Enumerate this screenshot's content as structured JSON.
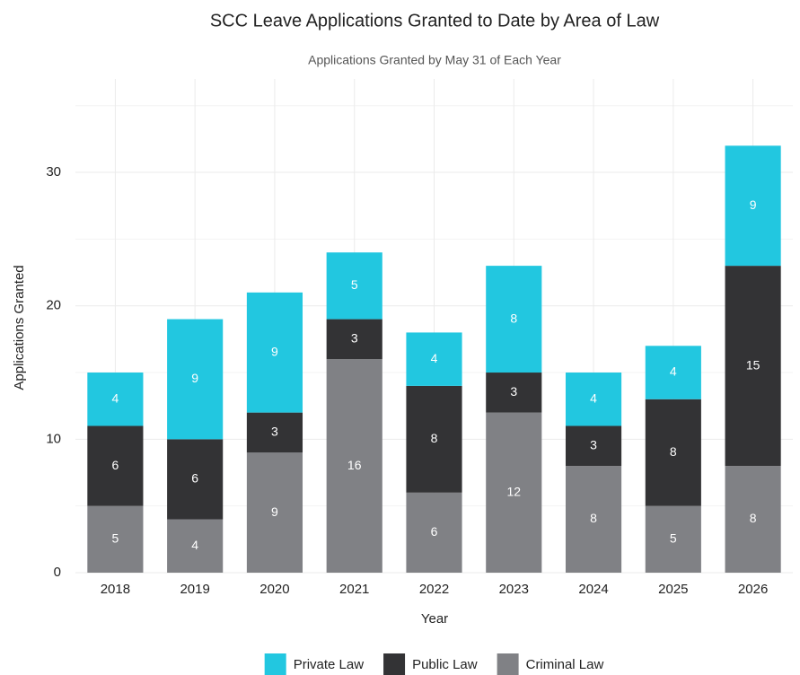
{
  "chart_data": {
    "type": "stacked_bar",
    "title": "SCC Leave Applications Granted to Date by Area of Law",
    "subtitle": "Applications Granted by May 31 of Each Year",
    "x_label": "Year",
    "y_label": "Applications Granted",
    "categories": [
      "2018",
      "2019",
      "2020",
      "2021",
      "2022",
      "2023",
      "2024",
      "2025",
      "2026"
    ],
    "series": [
      {
        "name": "Private Law",
        "color": "#22c7e0",
        "values": [
          4,
          9,
          9,
          5,
          4,
          8,
          4,
          4,
          9
        ]
      },
      {
        "name": "Public Law",
        "color": "#333335",
        "values": [
          6,
          6,
          3,
          3,
          8,
          3,
          3,
          8,
          15
        ]
      },
      {
        "name": "Criminal Law",
        "color": "#808185",
        "values": [
          5,
          4,
          9,
          16,
          6,
          12,
          8,
          5,
          8
        ]
      }
    ],
    "ylim": [
      0,
      37
    ],
    "yticks": [
      0,
      10,
      20,
      30
    ],
    "yminor": [
      5,
      15,
      25,
      35
    ],
    "grid": true,
    "legend": "bottom"
  }
}
